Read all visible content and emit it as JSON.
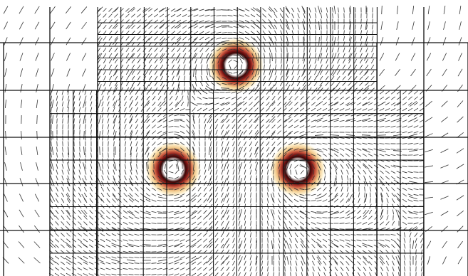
{
  "figure": {
    "kind": "adaptive-mesh vector field with vortex rings",
    "background_color": "#ffffff",
    "line_color": "#111111",
    "vector_color": "#333333"
  },
  "colormap": {
    "name": "amber-to-dark-red",
    "stops": [
      "#fff4d6",
      "#f2c98a",
      "#c8553d",
      "#8b1a1a",
      "#3a0606"
    ]
  },
  "vortices": [
    {
      "label": "vortex-top",
      "id": 1
    },
    {
      "label": "vortex-left",
      "id": 2
    },
    {
      "label": "vortex-right",
      "id": 3
    }
  ]
}
